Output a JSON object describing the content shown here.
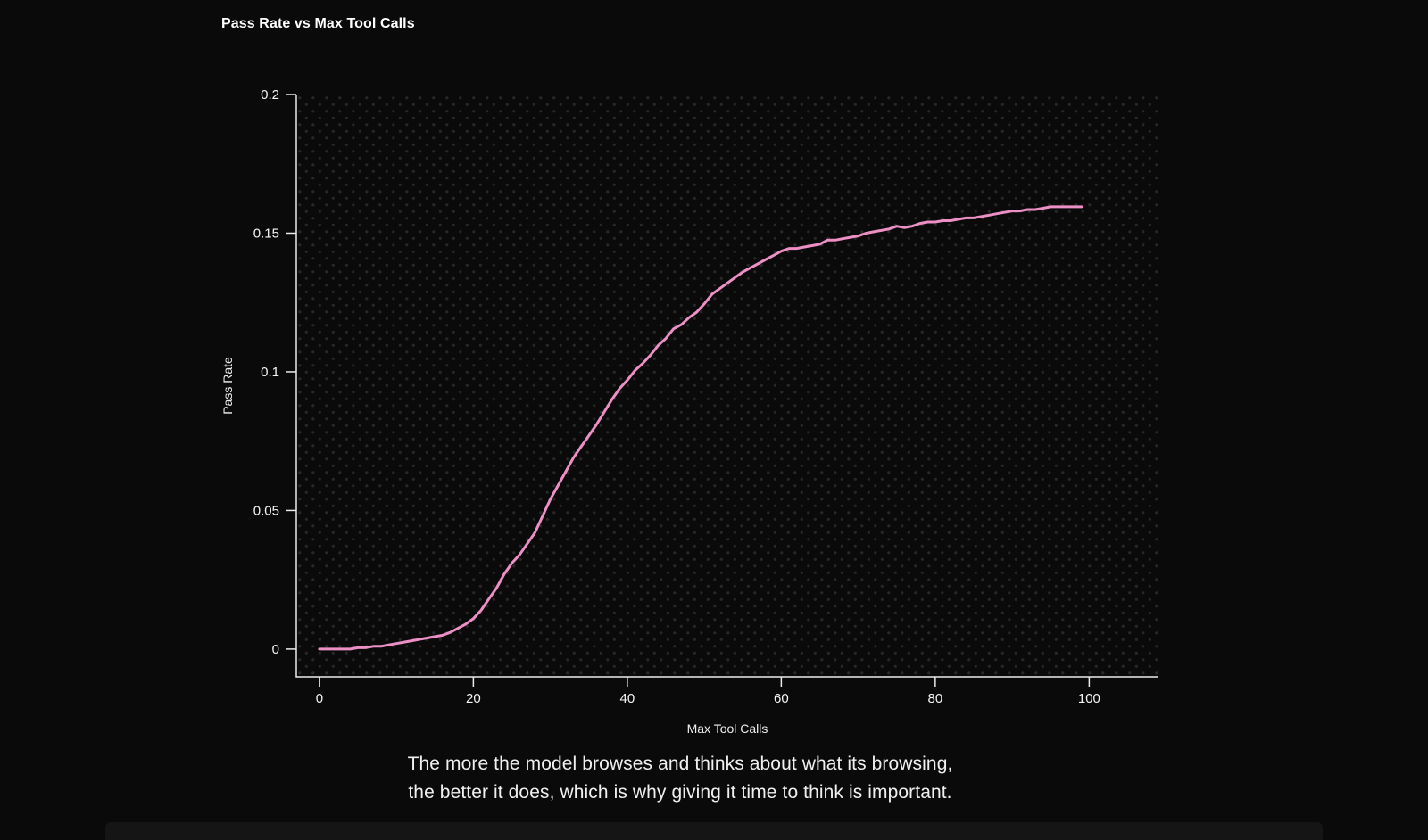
{
  "chart_data": {
    "type": "line",
    "title": "Pass Rate vs Max Tool Calls",
    "xlabel": "Max Tool Calls",
    "ylabel": "Pass Rate",
    "xlim": [
      -3,
      109
    ],
    "ylim": [
      -0.01,
      0.2
    ],
    "xticks": [
      0,
      20,
      40,
      60,
      80,
      100
    ],
    "xtick_labels": [
      "0",
      "20",
      "40",
      "60",
      "80",
      "100"
    ],
    "yticks": [
      0,
      0.05,
      0.1,
      0.15,
      0.2
    ],
    "ytick_labels": [
      "0",
      "0.05",
      "0.1",
      "0.15",
      "0.2"
    ],
    "grid": "dotted-background",
    "legend": "none",
    "series": [
      {
        "name": "pass-rate",
        "x": [
          0,
          1,
          2,
          3,
          4,
          5,
          6,
          7,
          8,
          9,
          10,
          11,
          12,
          13,
          14,
          15,
          16,
          17,
          18,
          19,
          20,
          21,
          22,
          23,
          24,
          25,
          26,
          27,
          28,
          29,
          30,
          31,
          32,
          33,
          34,
          35,
          36,
          37,
          38,
          39,
          40,
          41,
          42,
          43,
          44,
          45,
          46,
          47,
          48,
          49,
          50,
          51,
          52,
          53,
          54,
          55,
          56,
          57,
          58,
          59,
          60,
          61,
          62,
          63,
          64,
          65,
          66,
          67,
          68,
          69,
          70,
          71,
          72,
          73,
          74,
          75,
          76,
          77,
          78,
          79,
          80,
          81,
          82,
          83,
          84,
          85,
          86,
          87,
          88,
          89,
          90,
          91,
          92,
          93,
          94,
          95,
          96,
          97,
          98,
          99
        ],
        "y": [
          0.0,
          0.0,
          0.0,
          0.0,
          0.0,
          0.0005,
          0.0005,
          0.001,
          0.001,
          0.0015,
          0.002,
          0.0025,
          0.003,
          0.0035,
          0.004,
          0.0045,
          0.005,
          0.006,
          0.0075,
          0.009,
          0.011,
          0.014,
          0.018,
          0.022,
          0.027,
          0.031,
          0.034,
          0.038,
          0.042,
          0.048,
          0.054,
          0.059,
          0.064,
          0.069,
          0.073,
          0.077,
          0.081,
          0.0855,
          0.09,
          0.094,
          0.097,
          0.1005,
          0.103,
          0.106,
          0.1095,
          0.112,
          0.1155,
          0.117,
          0.1195,
          0.1215,
          0.1245,
          0.128,
          0.13,
          0.132,
          0.134,
          0.136,
          0.1375,
          0.139,
          0.1405,
          0.142,
          0.1435,
          0.1445,
          0.1445,
          0.145,
          0.1455,
          0.146,
          0.1475,
          0.1475,
          0.148,
          0.1485,
          0.149,
          0.15,
          0.1505,
          0.151,
          0.1515,
          0.1525,
          0.152,
          0.1525,
          0.1535,
          0.154,
          0.154,
          0.1545,
          0.1545,
          0.155,
          0.1555,
          0.1555,
          0.156,
          0.1565,
          0.157,
          0.1575,
          0.158,
          0.158,
          0.1585,
          0.1585,
          0.159,
          0.1595,
          0.1595,
          0.1595,
          0.1595,
          0.1595
        ]
      }
    ],
    "colors": {
      "line": "#ec8fc5",
      "axis": "#ebebeb",
      "dot_grid": "#282828",
      "background": "#0a0a0a",
      "text": "#f5f5f5"
    }
  },
  "caption": {
    "line1": "The more the model browses and thinks about what its browsing,",
    "line2": "the better it does, which is why giving it time to think is important."
  }
}
